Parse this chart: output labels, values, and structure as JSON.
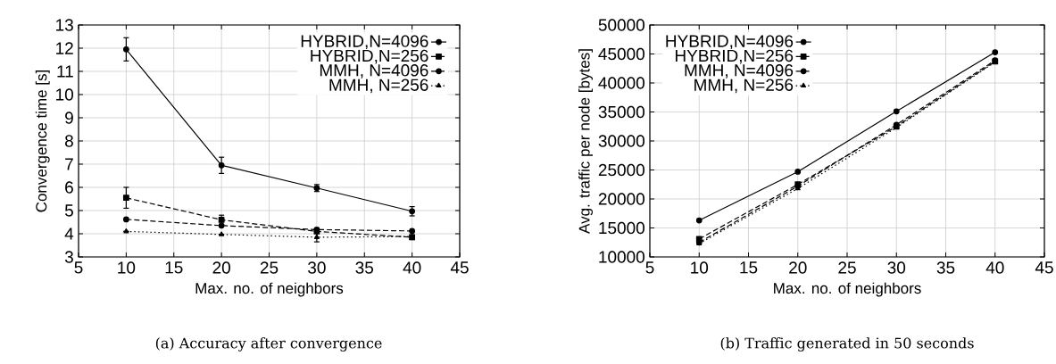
{
  "chart_data": [
    {
      "type": "line",
      "xlabel": "Max. no. of neighbors",
      "ylabel": "Convergence time [s]",
      "annotations": [
        "(a) Accuracy after convergence"
      ],
      "x": [
        10,
        20,
        30,
        40
      ],
      "xlim": [
        5,
        45
      ],
      "xticks": [
        5,
        10,
        15,
        20,
        25,
        30,
        35,
        40,
        45
      ],
      "ylim": [
        3,
        13
      ],
      "yticks": [
        3,
        4,
        5,
        6,
        7,
        8,
        9,
        10,
        11,
        12,
        13
      ],
      "grid": true,
      "legend": "top right",
      "series": [
        {
          "name": "HYBRID,N=4096",
          "color": "#000000",
          "marker": "circle",
          "line_style": "solid",
          "values": [
            11.95,
            6.95,
            5.97,
            4.97
          ],
          "errors": [
            0.5,
            0.35,
            0.15,
            0.2
          ]
        },
        {
          "name": "HYBRID,N=256",
          "color": "#000000",
          "marker": "square",
          "line_style": "dashed",
          "values": [
            5.55,
            4.6,
            4.1,
            3.85
          ],
          "errors": [
            0.45,
            0.2,
            null,
            0.1
          ]
        },
        {
          "name": "MMH, N=4096",
          "color": "#000000",
          "marker": "circle",
          "line_style": "dashed",
          "values": [
            4.62,
            4.35,
            4.18,
            4.12
          ]
        },
        {
          "name": "MMH, N=256",
          "color": "#000000",
          "marker": "triangle",
          "line_style": "dotted",
          "values": [
            4.1,
            3.97,
            3.85,
            3.88
          ],
          "errors": [
            null,
            null,
            [
              3.65,
              4.25
            ],
            null
          ]
        }
      ]
    },
    {
      "type": "line",
      "xlabel": "Max. no. of neighbors",
      "ylabel": "Avg. traffic per node [bytes]",
      "annotations": [
        "(b) Traffic generated in 50 seconds"
      ],
      "x": [
        10,
        20,
        30,
        40
      ],
      "xlim": [
        5,
        45
      ],
      "xticks": [
        5,
        10,
        15,
        20,
        25,
        30,
        35,
        40,
        45
      ],
      "ylim": [
        10000,
        50000
      ],
      "yticks": [
        10000,
        15000,
        20000,
        25000,
        30000,
        35000,
        40000,
        45000,
        50000
      ],
      "grid": true,
      "legend": "top left",
      "series": [
        {
          "name": "HYBRID,N=4096",
          "color": "#000000",
          "marker": "circle",
          "line_style": "solid",
          "values": [
            16300,
            24700,
            35100,
            45300
          ]
        },
        {
          "name": "HYBRID,N=256",
          "color": "#000000",
          "marker": "square",
          "line_style": "dashed",
          "values": [
            13100,
            22500,
            32500,
            43700
          ]
        },
        {
          "name": "MMH, N=4096",
          "color": "#000000",
          "marker": "circle",
          "line_style": "dashed",
          "values": [
            12500,
            22200,
            32800,
            43900
          ]
        },
        {
          "name": "MMH, N=256",
          "color": "#000000",
          "marker": "triangle",
          "line_style": "dotted",
          "values": [
            12300,
            21800,
            32300,
            43600
          ]
        }
      ]
    }
  ]
}
